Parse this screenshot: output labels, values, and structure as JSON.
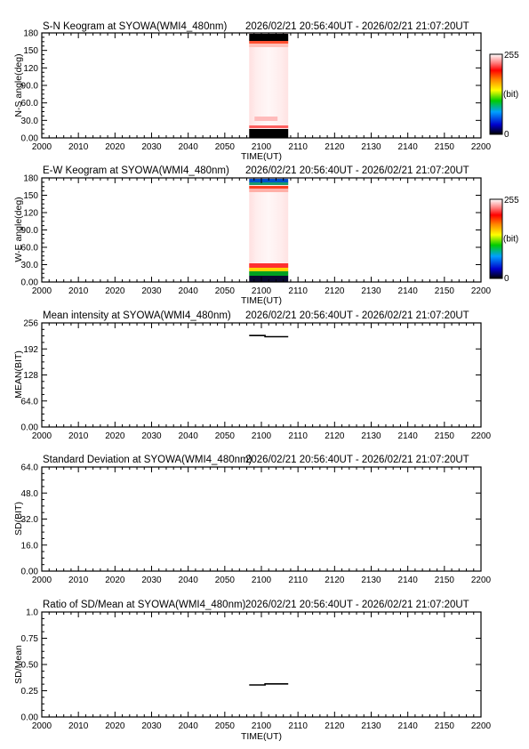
{
  "chart_data": [
    {
      "type": "heatmap",
      "title": "S-N Keogram at SYOWA(WMI4_480nm)",
      "time_range": "2026/02/21 20:56:40UT - 2026/02/21 21:07:20UT",
      "xlabel": "TIME(UT)",
      "ylabel": "N-S angle(deg)",
      "x_ticks": [
        "2000",
        "2010",
        "2020",
        "2030",
        "2040",
        "2050",
        "2100",
        "2110",
        "2120",
        "2130",
        "2140",
        "2150",
        "2200"
      ],
      "y_ticks": [
        "0.00",
        "30.0",
        "60.0",
        "90.0",
        "120",
        "150",
        "180"
      ],
      "ylim": [
        0,
        180
      ],
      "colorbar": {
        "max_label": "255",
        "unit_label": "(bit)",
        "min_label": "0"
      },
      "data_extent_ut": [
        "20:56:40",
        "21:07:20"
      ]
    },
    {
      "type": "heatmap",
      "title": "E-W Keogram at SYOWA(WMI4_480nm)",
      "time_range": "2026/02/21 20:56:40UT - 2026/02/21 21:07:20UT",
      "xlabel": "TIME(UT)",
      "ylabel": "W-E angle(deg)",
      "x_ticks": [
        "2000",
        "2010",
        "2020",
        "2030",
        "2040",
        "2050",
        "2100",
        "2110",
        "2120",
        "2130",
        "2140",
        "2150",
        "2200"
      ],
      "y_ticks": [
        "0.00",
        "30.0",
        "60.0",
        "90.0",
        "120",
        "150",
        "180"
      ],
      "ylim": [
        0,
        180
      ],
      "colorbar": {
        "max_label": "255",
        "unit_label": "(bit)",
        "min_label": "0"
      },
      "data_extent_ut": [
        "20:56:40",
        "21:07:20"
      ]
    },
    {
      "type": "line",
      "title": "Mean intensity at SYOWA(WMI4_480nm)",
      "time_range": "2026/02/21 20:56:40UT - 2026/02/21 21:07:20UT",
      "xlabel": "",
      "ylabel": "MEAN(BIT)",
      "x_ticks": [
        "2000",
        "2010",
        "2020",
        "2030",
        "2040",
        "2050",
        "2100",
        "2110",
        "2120",
        "2130",
        "2140",
        "2150",
        "2200"
      ],
      "y_ticks": [
        "0.00",
        "64.0",
        "128",
        "192",
        "256"
      ],
      "ylim": [
        0,
        256
      ],
      "series": [
        {
          "x_min": [
            2056.67,
            2101.0,
            2101.0,
            2107.33
          ],
          "y": [
            225,
            225,
            222,
            222
          ]
        }
      ]
    },
    {
      "type": "line",
      "title": "Standard Deviation at SYOWA(WMI4_480nm)",
      "time_range": "2026/02/21 20:56:40UT - 2026/02/21 21:07:20UT",
      "xlabel": "",
      "ylabel": "SD(BIT)",
      "x_ticks": [
        "2000",
        "2010",
        "2020",
        "2030",
        "2040",
        "2050",
        "2100",
        "2110",
        "2120",
        "2130",
        "2140",
        "2150",
        "2200"
      ],
      "y_ticks": [
        "0.00",
        "16.0",
        "32.0",
        "48.0",
        "64.0"
      ],
      "ylim": [
        0,
        64
      ],
      "series": []
    },
    {
      "type": "line",
      "title": "Ratio of SD/Mean at SYOWA(WMI4_480nm)",
      "time_range": "2026/02/21 20:56:40UT - 2026/02/21 21:07:20UT",
      "xlabel": "TIME(UT)",
      "ylabel": "SD/Mean",
      "x_ticks": [
        "2000",
        "2010",
        "2020",
        "2030",
        "2040",
        "2050",
        "2100",
        "2110",
        "2120",
        "2130",
        "2140",
        "2150",
        "2200"
      ],
      "y_ticks": [
        "0.00",
        "0.25",
        "0.50",
        "0.75",
        "1.0"
      ],
      "ylim": [
        0,
        1
      ],
      "series": [
        {
          "x_min": [
            2056.67,
            2101.0,
            2101.0,
            2107.33
          ],
          "y": [
            0.305,
            0.305,
            0.315,
            0.315
          ]
        }
      ]
    }
  ]
}
